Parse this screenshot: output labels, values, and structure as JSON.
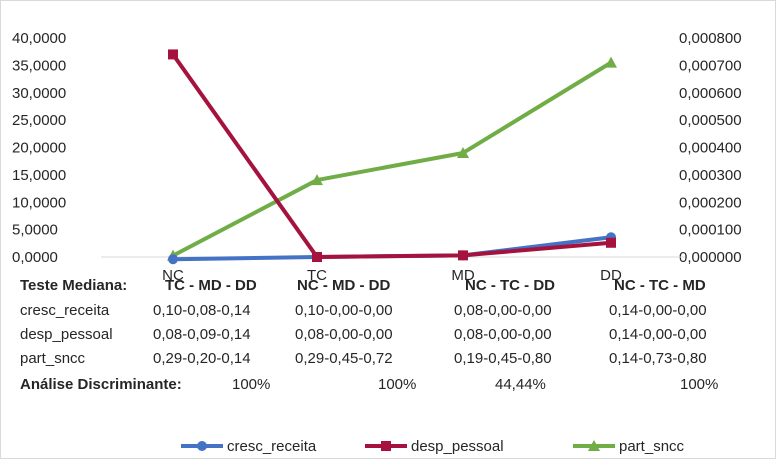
{
  "chart_data": {
    "type": "line",
    "categories": [
      "NC",
      "TC",
      "MD",
      "DD"
    ],
    "series": [
      {
        "name": "cresc_receita",
        "axis": "left",
        "color": "#4472c4",
        "marker": "circle",
        "values": [
          -0.4,
          0.0,
          0.3,
          3.6
        ]
      },
      {
        "name": "desp_pessoal",
        "axis": "left",
        "color": "#a5123e",
        "marker": "square",
        "values": [
          37.0,
          0.0,
          0.3,
          2.6
        ]
      },
      {
        "name": "part_sncc",
        "axis": "right",
        "color": "#70ad47",
        "marker": "triangle",
        "values": [
          5e-06,
          0.000281,
          0.00038,
          0.00071
        ]
      }
    ],
    "ylim_left": [
      0,
      40
    ],
    "yticks_left": [
      "0,0000",
      "5,0000",
      "10,0000",
      "15,0000",
      "20,0000",
      "25,0000",
      "30,0000",
      "35,0000",
      "40,0000"
    ],
    "ylim_right": [
      0,
      0.0008
    ],
    "yticks_right": [
      "0,000000",
      "0,000100",
      "0,000200",
      "0,000300",
      "0,000400",
      "0,000500",
      "0,000600",
      "0,000700",
      "0,000800"
    ],
    "grid": false,
    "legend_position": "bottom"
  },
  "table": {
    "header": [
      "Teste Mediana:",
      "TC - MD - DD",
      "NC - MD - DD",
      "NC - TC - DD",
      "NC - TC - MD"
    ],
    "rows": [
      {
        "label": "cresc_receita",
        "cells": [
          "0,10-0,08-0,14",
          "0,10-0,00-0,00",
          "0,08-0,00-0,00",
          "0,14-0,00-0,00"
        ]
      },
      {
        "label": "desp_pessoal",
        "cells": [
          "0,08-0,09-0,14",
          "0,08-0,00-0,00",
          "0,08-0,00-0,00",
          "0,14-0,00-0,00"
        ]
      },
      {
        "label": "part_sncc",
        "cells": [
          "0,29-0,20-0,14",
          "0,29-0,45-0,72",
          "0,19-0,45-0,80",
          "0,14-0,73-0,80"
        ]
      }
    ],
    "discriminant": {
      "label": "Análise Discriminante:",
      "values": [
        "100%",
        "100%",
        "44,44%",
        "100%"
      ]
    }
  }
}
